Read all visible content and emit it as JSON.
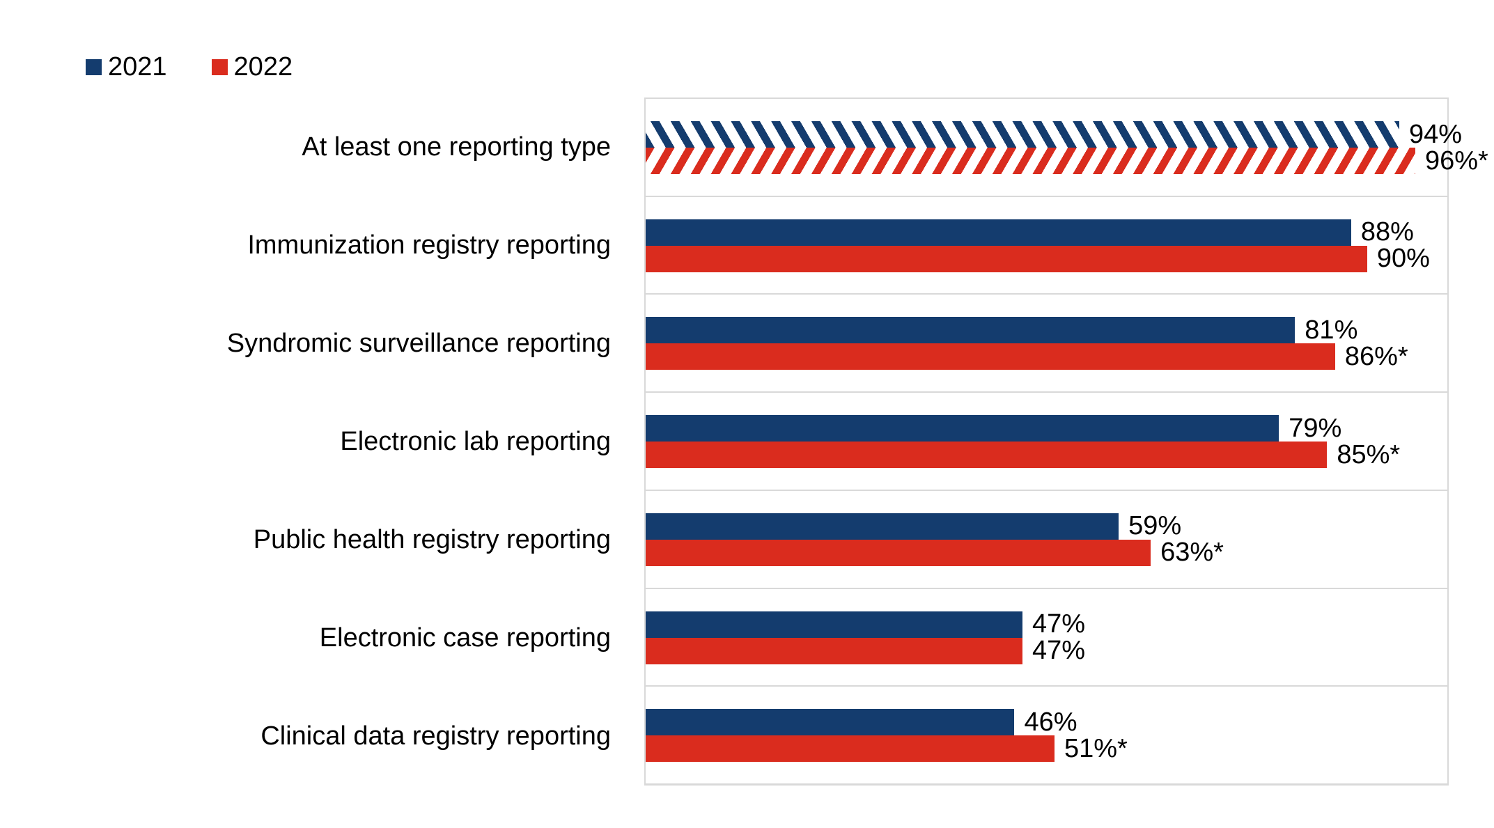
{
  "legend": {
    "items": [
      {
        "label": "2021",
        "color": "#143C6E"
      },
      {
        "label": "2022",
        "color": "#DA2C1E"
      }
    ]
  },
  "chart_data": {
    "type": "bar",
    "orientation": "horizontal",
    "title": "",
    "xlabel": "",
    "ylabel": "",
    "xlim": [
      0,
      100
    ],
    "legend_position": "top-left",
    "gridlines": "light-gray category separator lines and plot border",
    "categories": [
      "At least one reporting type",
      "Immunization registry reporting",
      "Syndromic surveillance reporting",
      "Electronic lab reporting",
      "Public health registry reporting",
      "Electronic case reporting",
      "Clinical data registry reporting"
    ],
    "series": [
      {
        "name": "2021",
        "color": "#143C6E",
        "values": [
          94,
          88,
          81,
          79,
          59,
          47,
          46
        ],
        "value_labels": [
          "94%",
          "88%",
          "81%",
          "79%",
          "59%",
          "47%",
          "46%"
        ],
        "hatched_flags": [
          true,
          false,
          false,
          false,
          false,
          false,
          false
        ],
        "hatch_style": "diagonal-down-stripes"
      },
      {
        "name": "2022",
        "color": "#DA2C1E",
        "values": [
          96,
          90,
          86,
          85,
          63,
          47,
          51
        ],
        "value_labels": [
          "96%*",
          "90%",
          "86%*",
          "85%*",
          "63%*",
          "47%",
          "51%*"
        ],
        "hatched_flags": [
          true,
          false,
          false,
          false,
          false,
          false,
          false
        ],
        "hatch_style": "diagonal-up-stripes"
      }
    ],
    "annotation_symbol_meaning_visible": false
  },
  "colors": {
    "navy": "#143C6E",
    "red": "#DA2C1E",
    "gridline": "#D9D9D9",
    "text": "#000000",
    "background": "#FFFFFF"
  }
}
